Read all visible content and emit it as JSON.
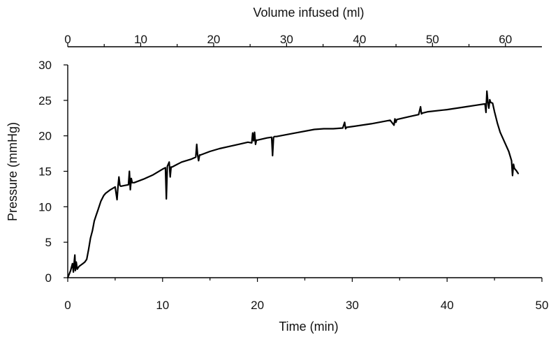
{
  "chart_data": {
    "type": "line",
    "xlabel": "Time (min)",
    "ylabel": "Pressure (mmHg)",
    "x2label": "Volume infused (ml)",
    "xlim": [
      0,
      50
    ],
    "ylim": [
      0,
      30
    ],
    "x2lim": [
      0,
      65
    ],
    "xticks": [
      0,
      10,
      20,
      30,
      40,
      50
    ],
    "yticks": [
      0,
      5,
      10,
      15,
      20,
      25,
      30
    ],
    "x2ticks": [
      0,
      10,
      20,
      30,
      40,
      50,
      60
    ],
    "grid": false,
    "line_color": "#000000",
    "series": [
      {
        "x": [
          0,
          0.3,
          0.5,
          0.6,
          0.7,
          0.75,
          0.8,
          0.9,
          1.0,
          1.2,
          1.4,
          1.6,
          1.8,
          2.0,
          2.2,
          2.4,
          2.6,
          2.8,
          3.0,
          3.2,
          3.5,
          3.8,
          4.0,
          4.5,
          5.0,
          5.2,
          5.3,
          5.4,
          5.5,
          5.6,
          6.0,
          6.4,
          6.5,
          6.6,
          6.7,
          6.8,
          7.0,
          8.0,
          9.0,
          10.0,
          10.3,
          10.4,
          10.5,
          10.7,
          10.8,
          10.9,
          11.0,
          12.0,
          13.0,
          13.5,
          13.6,
          13.7,
          13.8,
          13.9,
          14.0,
          15.0,
          16.0,
          17.0,
          18.0,
          19.0,
          19.4,
          19.5,
          19.6,
          19.7,
          19.8,
          19.9,
          20.0,
          21.0,
          21.5,
          21.6,
          21.7,
          21.8,
          22.0,
          24.0,
          26.0,
          27.0,
          28.0,
          29.0,
          29.2,
          29.3,
          29.4,
          30.0,
          32.0,
          34.0,
          34.4,
          34.5,
          34.6,
          34.7,
          35.0,
          36.0,
          37.0,
          37.2,
          37.3,
          37.4,
          38.0,
          40.0,
          42.0,
          43.0,
          44.0,
          44.1,
          44.2,
          44.3,
          44.4,
          44.5,
          44.6,
          44.8,
          45.0,
          45.3,
          45.6,
          46.0,
          46.5,
          46.8,
          46.9,
          47.0,
          47.1,
          47.3,
          47.5
        ],
        "y": [
          0,
          1.0,
          2.0,
          0.8,
          2.5,
          3.2,
          1.0,
          2.2,
          1.2,
          1.6,
          1.8,
          2.0,
          2.2,
          2.6,
          4.0,
          5.6,
          6.6,
          8.0,
          8.8,
          9.6,
          10.8,
          11.6,
          11.9,
          12.4,
          12.8,
          11.0,
          12.9,
          14.2,
          13.0,
          12.9,
          13.0,
          13.1,
          15.0,
          12.4,
          14.0,
          13.4,
          13.4,
          13.9,
          14.5,
          15.3,
          15.5,
          11.1,
          15.7,
          16.3,
          14.2,
          15.6,
          15.6,
          16.3,
          16.7,
          17.0,
          18.8,
          17.3,
          16.5,
          17.3,
          17.3,
          17.8,
          18.2,
          18.5,
          18.8,
          19.1,
          19.0,
          20.4,
          19.3,
          20.5,
          18.8,
          19.4,
          19.4,
          19.7,
          19.8,
          17.2,
          19.8,
          19.9,
          19.9,
          20.4,
          20.9,
          21.0,
          21.0,
          21.1,
          21.9,
          21.0,
          21.2,
          21.3,
          21.7,
          22.2,
          21.5,
          22.4,
          21.9,
          22.3,
          22.4,
          22.7,
          23.0,
          24.1,
          23.1,
          23.2,
          23.4,
          23.7,
          24.1,
          24.3,
          24.5,
          23.3,
          26.3,
          24.8,
          23.9,
          25.1,
          24.7,
          24.6,
          23.4,
          21.8,
          20.5,
          19.3,
          17.8,
          16.5,
          14.4,
          16.0,
          15.4,
          15.1,
          14.7
        ]
      }
    ]
  }
}
